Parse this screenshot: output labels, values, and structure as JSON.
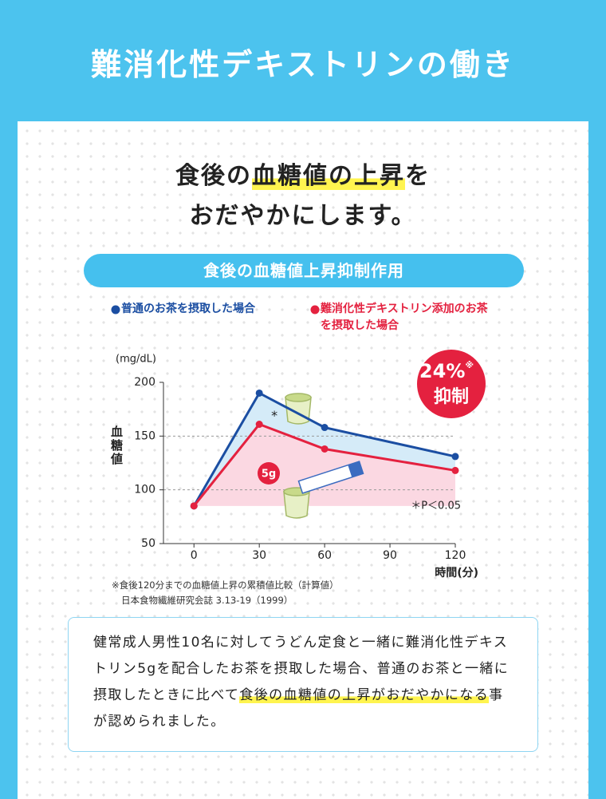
{
  "header": {
    "title": "難消化性デキストリンの働き"
  },
  "headline": {
    "line1": [
      "食後の",
      "血糖値の上昇",
      "を"
    ],
    "line2": "おだやかにします。"
  },
  "chart_data": {
    "type": "line",
    "title": "食後の血糖値上昇抑制作用",
    "y_unit": "(mg/dL)",
    "ylabel": "血糖値",
    "xlabel": "時間(分)",
    "x": [
      0,
      30,
      60,
      120
    ],
    "series": [
      {
        "name": "普通のお茶を摂取した場合",
        "color": "#1b4ea2",
        "fill": "#d5ebf8",
        "values": [
          85,
          190,
          158,
          131
        ]
      },
      {
        "name": "難消化性デキストリン添加のお茶を摂取した場合",
        "color": "#e4213f",
        "fill": "#fbd8e2",
        "values": [
          85,
          161,
          138,
          118
        ]
      }
    ],
    "xlim": [
      -14,
      120
    ],
    "ylim": [
      50,
      200
    ],
    "xticks": [
      0,
      30,
      60,
      90,
      120
    ],
    "yticks": [
      50,
      100,
      150,
      200
    ],
    "grid": true,
    "annotations": {
      "badge_value": "24%",
      "badge_mark": "※",
      "badge_label": "抑制",
      "significance_mark": "*",
      "significance": "＊P＜0.05",
      "dose": "5g"
    },
    "footnotes": [
      "※食後120分までの血糖値上昇の累積値比較（計算値）",
      "日本食物繊維研究会誌 3.13-19（1999）"
    ]
  },
  "description": {
    "parts": [
      "健常成人男性10名に対してうどん定食と一緒に難消化性デキストリン5gを配合したお茶を摂取した場合、普通のお茶と一緒に摂取したときに比べて",
      "食後の血糖値の上昇がおだやかになる",
      "事が認められました。"
    ]
  }
}
